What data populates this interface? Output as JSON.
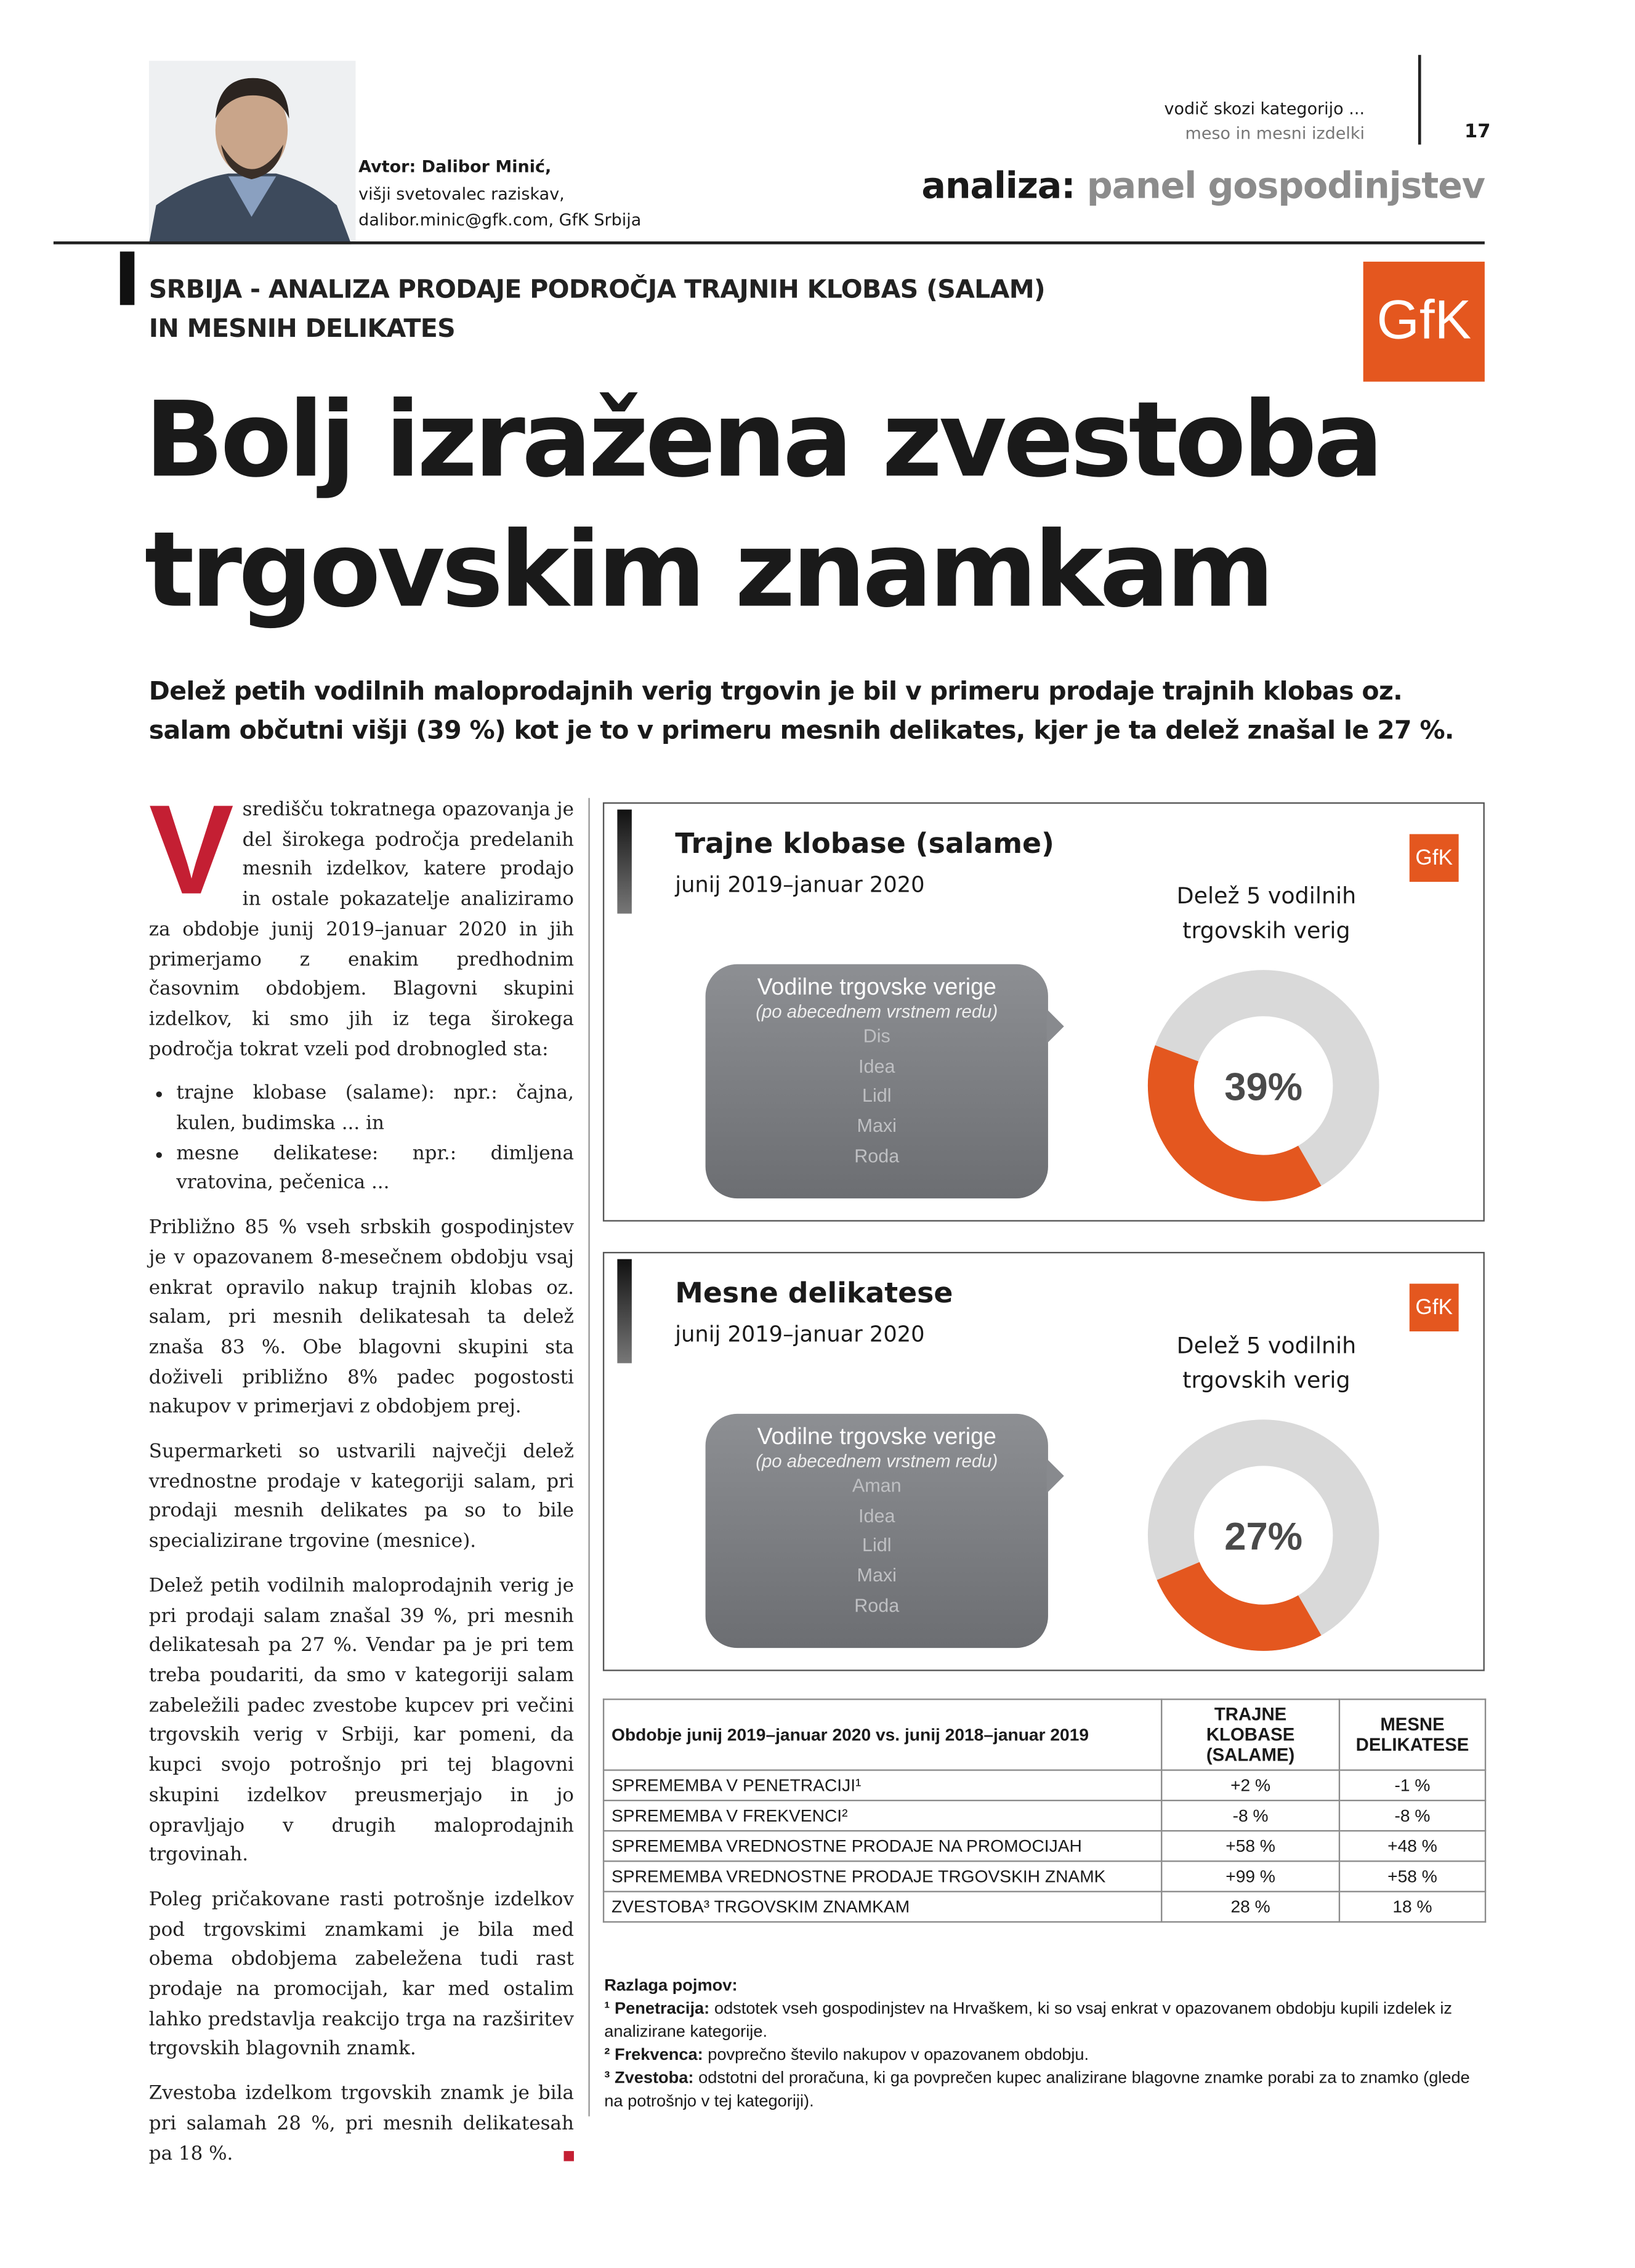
{
  "header": {
    "section": "vodič skozi kategorijo ...",
    "subsection": "meso in mesni izdelki",
    "page": "17",
    "rubric": "analiza:",
    "rubric_sub": "panel gospodinjstev",
    "logo": "GfK"
  },
  "author": {
    "name": "Avtor: Dalibor Minić,",
    "role": "višji svetovalec raziskav,",
    "contact": "dalibor.minic@gfk.com, GfK Srbija"
  },
  "kicker": [
    "SRBIJA - ANALIZA PRODAJE PODROČJA TRAJNIH KLOBAS (SALAM)",
    "IN MESNIH DELIKATES"
  ],
  "title": [
    "Bolj izražena zvestoba",
    "trgovskim znamkam"
  ],
  "lead": "Delež petih vodilnih maloprodajnih verig trgovin je bil v primeru prodaje trajnih klobas oz. salam občutni višji (39 %) kot je to v primeru mesnih delikates, kjer je ta delež znašal le 27 %.",
  "body": {
    "drop_cap": "V",
    "intro": "središču tokratnega opazovanja je del širokega področja predelanih mesnih izdelkov, katere prodajo in ostale pokazatelje analiziramo za obdobje junij 2019–januar 2020 in jih primerjamo z enakim predhodnim časovnim obdobjem. Blagovni skupini izdelkov, ki smo jih iz tega širokega področja tokrat vzeli pod drobnogled sta:",
    "bullets": [
      "trajne klobase (salame): npr.: čajna, kulen, budimska ... in",
      "mesne delikatese: npr.: dimljena vratovina, pečenica ..."
    ],
    "paragraphs": [
      "Približno 85 % vseh srbskih gospodinjstev je v opazovanem 8-mesečnem obdobju vsaj enkrat opravilo nakup trajnih klobas oz. salam, pri mesnih delikatesah ta delež znaša 83 %. Obe blagovni skupini sta doživeli približno 8% padec pogostosti nakupov v primerjavi z obdobjem prej.",
      "Supermarketi so ustvarili največji delež vrednostne prodaje v kategoriji salam, pri prodaji mesnih delikates pa so to bile specializirane trgovine (mesnice).",
      "Delež petih vodilnih maloprodajnih verig je pri prodaji salam znašal 39 %, pri mesnih delikatesah pa 27 %. Vendar pa je pri tem treba poudariti, da smo v kategoriji salam zabeležili padec zvestobe kupcev pri večini trgovskih verig v Srbiji, kar pomeni, da kupci svojo potrošnjo pri tej blagovni skupini izdelkov preusmerjajo in jo opravljajo v drugih maloprodajnih trgovinah.",
      "Poleg pričakovane rasti potrošnje izdelkov pod trgovskimi znamkami je bila med obema obdobjema zabeležena tudi rast prodaje na promocijah, kar med ostalim lahko predstavlja reakcijo trga na razširitev trgovskih blagovnih znamk.",
      "Zvestoba izdelkom trgovskih znamk je bila pri salamah 28 %, pri mesnih delikatesah pa 18 %."
    ]
  },
  "charts": [
    {
      "type": "donut",
      "title": "Trajne klobase (salame)",
      "period": "junij 2019–januar 2020",
      "logo": "GfK",
      "share_title": [
        "Delež 5 vodilnih",
        "trgovskih verig"
      ],
      "box_title": "Vodilne trgovske verige",
      "box_subtitle": "(po abecednem vrstnem redu)",
      "chains": [
        "Dis",
        "Idea",
        "Lidl",
        "Maxi",
        "Roda"
      ],
      "share": {
        "value": 39,
        "label": "39%"
      },
      "color": "#e4571f",
      "rest_color": "#d9d9d9"
    },
    {
      "type": "donut",
      "title": "Mesne delikatese",
      "period": "junij 2019–januar 2020",
      "logo": "GfK",
      "share_title": [
        "Delež 5 vodilnih",
        "trgovskih verig"
      ],
      "box_title": "Vodilne trgovske verige",
      "box_subtitle": "(po abecednem vrstnem redu)",
      "chains": [
        "Aman",
        "Idea",
        "Lidl",
        "Maxi",
        "Roda"
      ],
      "share": {
        "value": 27,
        "label": "27%"
      },
      "color": "#e4571f",
      "rest_color": "#d9d9d9"
    }
  ],
  "table": {
    "header": [
      "Obdobje junij 2019–januar 2020 vs. junij 2018–januar 2019",
      "TRAJNE KLOBASE (SALAME)",
      "MESNE DELIKATESE"
    ],
    "rows": [
      [
        "SPREMEMBA V PENETRACIJI¹",
        "+2 %",
        "-1 %"
      ],
      [
        "SPREMEMBA V FREKVENCI²",
        "-8 %",
        "-8 %"
      ],
      [
        "SPREMEMBA VREDNOSTNE PRODAJE NA PROMOCIJAH",
        "+58 %",
        "+48 %"
      ],
      [
        "SPREMEMBA VREDNOSTNE PRODAJE TRGOVSKIH ZNAMK",
        "+99 %",
        "+58 %"
      ],
      [
        "ZVESTOBA³ TRGOVSKIM ZNAMKAM",
        "28 %",
        "18 %"
      ]
    ]
  },
  "notes": {
    "title": "Razlaga pojmov:",
    "items": [
      {
        "sup": "¹",
        "term": "Penetracija:",
        "text": "odstotek vseh gospodinjstev na Hrvaškem, ki so vsaj enkrat v opazovanem obdobju kupili izdelek iz analizirane kategorije."
      },
      {
        "sup": "²",
        "term": "Frekvenca:",
        "text": "povprečno število nakupov v opazovanem obdobju."
      },
      {
        "sup": "³",
        "term": "Zvestoba:",
        "text": "odstotni del proračuna, ki ga povprečen kupec analizirane blagovne znamke porabi za to znamko (glede na potrošnjo v tej kategoriji)."
      }
    ]
  }
}
